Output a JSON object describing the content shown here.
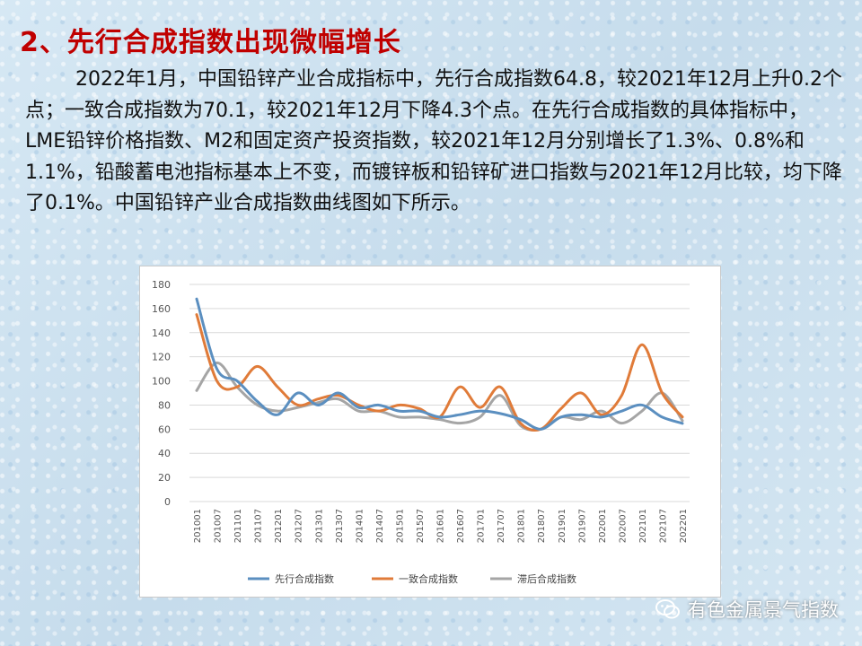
{
  "heading": "2、先行合成指数出现微幅增长",
  "paragraph": "2022年1月，中国铅锌产业合成指标中，先行合成指数64.8，较2021年12月上升0.2个点；一致合成指数为70.1，较2021年12月下降4.3个点。在先行合成指数的具体指标中，LME铅锌价格指数、M2和固定资产投资指数，较2021年12月分别增长了1.3%、0.8%和1.1%，铅酸蓄电池指标基本上不变，而镀锌板和铅锌矿进口指数与2021年12月比较，均下降了0.1%。中国铅锌产业合成指数曲线图如下所示。",
  "watermark": "有色金属景气指数",
  "colors": {
    "heading": "#c00000",
    "leading": "#5b8fc0",
    "coincident": "#e07b39",
    "lagging": "#a5a5a5",
    "grid": "#d9d9d9"
  },
  "chart_data": {
    "type": "line",
    "title": "",
    "xlabel": "",
    "ylabel": "",
    "ylim": [
      0,
      180
    ],
    "yticks": [
      0,
      20,
      40,
      60,
      80,
      100,
      120,
      140,
      160,
      180
    ],
    "grid": true,
    "legend_position": "bottom",
    "categories": [
      "201001",
      "201007",
      "201101",
      "201107",
      "201201",
      "201207",
      "201301",
      "201307",
      "201401",
      "201407",
      "201501",
      "201507",
      "201601",
      "201607",
      "201701",
      "201707",
      "201801",
      "201807",
      "201901",
      "201907",
      "202001",
      "202007",
      "202101",
      "202107",
      "202201"
    ],
    "series": [
      {
        "name": "先行合成指数",
        "color": "#5b8fc0",
        "values": [
          168,
          110,
          100,
          83,
          72,
          90,
          80,
          90,
          78,
          80,
          75,
          75,
          70,
          72,
          75,
          73,
          68,
          60,
          70,
          72,
          70,
          75,
          80,
          70,
          64.8
        ]
      },
      {
        "name": "一致合成指数",
        "color": "#e07b39",
        "values": [
          155,
          100,
          95,
          112,
          95,
          80,
          85,
          88,
          80,
          75,
          80,
          77,
          70,
          95,
          78,
          95,
          65,
          60,
          77,
          90,
          72,
          88,
          130,
          90,
          70.1
        ]
      },
      {
        "name": "滞后合成指数",
        "color": "#a5a5a5",
        "values": [
          92,
          115,
          95,
          80,
          75,
          78,
          82,
          85,
          75,
          75,
          70,
          70,
          68,
          65,
          70,
          88,
          63,
          60,
          70,
          68,
          75,
          65,
          75,
          90,
          67
        ]
      }
    ]
  }
}
